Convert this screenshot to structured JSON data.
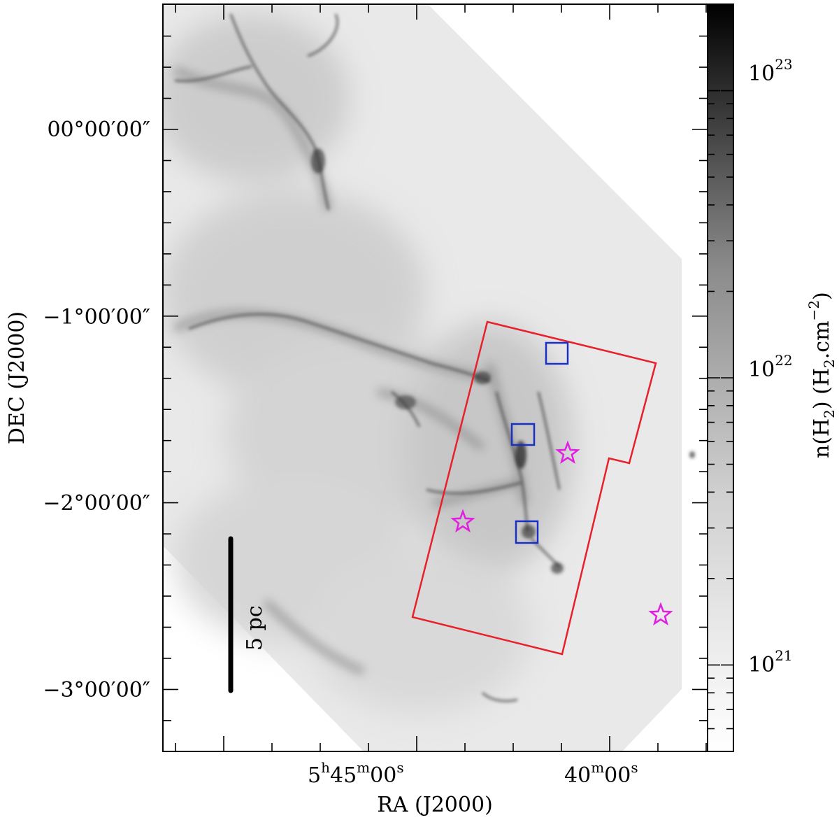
{
  "chart_data": {
    "type": "heatmap",
    "description_kind": "column density map (grayscale, log color scale)",
    "xlabel": "RA (J2000)",
    "ylabel": "DEC (J2000)",
    "x_ticks": [
      {
        "label_main": "5",
        "sup1": "h",
        "mid": "45",
        "sup2": "m",
        "end": "00",
        "sup3": "s",
        "ra_deg": 86.25
      },
      {
        "label_main": "40",
        "sup1": "m",
        "mid": "00",
        "sup2": "s",
        "ra_deg": 85.0
      }
    ],
    "y_ticks": [
      {
        "label": "00°00′00″",
        "dec_deg": 0
      },
      {
        "label": "−1°00′00″",
        "dec_deg": -1
      },
      {
        "label": "−2°00′00″",
        "dec_deg": -2
      },
      {
        "label": "−3°00′00″",
        "dec_deg": -3
      }
    ],
    "colorbar": {
      "label_main": "n(H",
      "label_sub": "2",
      "label_close": ")  (H",
      "label_sub2": "2",
      "label_unit": ".cm",
      "label_sup": "−2",
      "label_end": ")",
      "scale": "log",
      "range": [
        5e+20,
        2e+23
      ],
      "ticks": [
        {
          "base": "10",
          "exp": "21",
          "value": 1e+21
        },
        {
          "base": "10",
          "exp": "22",
          "value": 1e+22
        },
        {
          "base": "10",
          "exp": "23",
          "value": 1e+23
        }
      ]
    },
    "scale_bar": {
      "label": "5 pc"
    },
    "overlays": {
      "region_outline_color": "#e8202a",
      "boxes_color": "#1a2fc8",
      "stars_color": "#e020e0",
      "boxes_count": 3,
      "stars_count": 3
    },
    "grid": false
  }
}
